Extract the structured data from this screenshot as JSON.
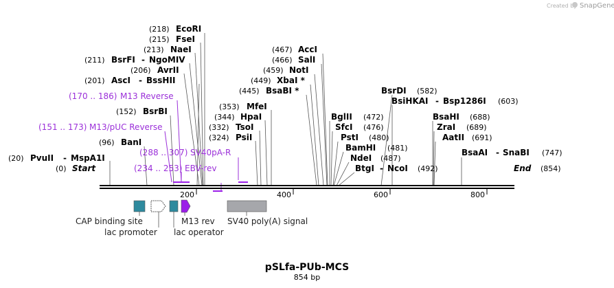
{
  "watermark": {
    "created_by": "Created by",
    "brand": "SnapGene"
  },
  "plasmid": {
    "name": "pSLfa-PUb-MCS",
    "size_label": "854 bp",
    "length": 854
  },
  "axis": {
    "ticks": [
      "200",
      "400",
      "600",
      "800"
    ]
  },
  "ends": {
    "start": {
      "pos": "(0)",
      "label": "Start"
    },
    "end": {
      "label": "End",
      "pos": "(854)"
    }
  },
  "left_sites": [
    {
      "pos": "(218)",
      "name": "EcoRI"
    },
    {
      "pos": "(215)",
      "name": "FseI"
    },
    {
      "pos": "(213)",
      "name": "NaeI"
    },
    {
      "pos": "(211)",
      "name": "BsrFI",
      "name2": "NgoMIV"
    },
    {
      "pos": "(206)",
      "name": "AvrII"
    },
    {
      "pos": "(201)",
      "name": "AscI",
      "name2": "BssHII"
    },
    {
      "pos": "(152)",
      "name": "BsrBI"
    },
    {
      "pos": "(96)",
      "name": "BanI"
    },
    {
      "pos": "(20)",
      "name": "PvuII",
      "name2": "MspA1I"
    }
  ],
  "mid_sites": [
    {
      "pos": "(467)",
      "name": "AccI"
    },
    {
      "pos": "(466)",
      "name": "SalI"
    },
    {
      "pos": "(459)",
      "name": "NotI"
    },
    {
      "pos": "(449)",
      "name": "XbaI *"
    },
    {
      "pos": "(445)",
      "name": "BsaBI *"
    },
    {
      "pos": "(353)",
      "name": "MfeI"
    },
    {
      "pos": "(344)",
      "name": "HpaI"
    },
    {
      "pos": "(332)",
      "name": "TsoI"
    },
    {
      "pos": "(324)",
      "name": "PsiI"
    }
  ],
  "right_sites": [
    {
      "name": "BglII",
      "pos": "(472)"
    },
    {
      "name": "SfcI",
      "pos": "(476)"
    },
    {
      "name": "PstI",
      "pos": "(480)"
    },
    {
      "name": "BamHI",
      "pos": "(481)"
    },
    {
      "name": "NdeI",
      "pos": "(487)"
    },
    {
      "name": "BtgI",
      "name2": "NcoI",
      "pos": "(492)"
    }
  ],
  "far_sites": [
    {
      "name": "BsrDI",
      "pos": "(582)"
    },
    {
      "name": "BsiHKAI",
      "name2": "Bsp1286I",
      "pos": "(603)"
    },
    {
      "name": "BsaHI",
      "pos": "(688)"
    },
    {
      "name": "ZraI",
      "pos": "(689)"
    },
    {
      "name": "AatII",
      "pos": "(691)"
    },
    {
      "name": "BsaAI",
      "name2": "SnaBI",
      "pos": "(747)"
    }
  ],
  "primers": [
    {
      "range": "(170 .. 186)",
      "name": "M13 Reverse"
    },
    {
      "range": "(151 .. 173)",
      "name": "M13/pUC Reverse"
    },
    {
      "range": "(288 .. 307)",
      "name": "SV40pA-R"
    },
    {
      "range": "(234 .. 253)",
      "name": "EBV-rev"
    }
  ],
  "features": [
    {
      "label": "CAP binding site",
      "color": "#2e8a9e"
    },
    {
      "label": "lac promoter",
      "color": "#ffffff"
    },
    {
      "label": "lac operator",
      "color": "#2e8a9e"
    },
    {
      "label": "M13 rev",
      "color": "#9b1fe8"
    },
    {
      "label": "SV40 poly(A) signal",
      "color": "#a6a7ab"
    }
  ],
  "colors": {
    "primer": "#9b30d9",
    "primer_bar": "#9b1fe8",
    "backbone": "#000000"
  }
}
